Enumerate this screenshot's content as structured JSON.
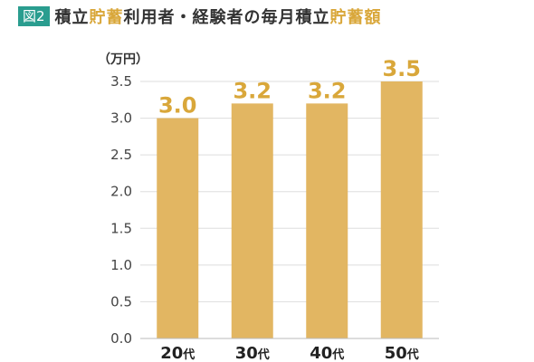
{
  "figure_label": "図2",
  "title_parts": [
    {
      "text": "積立",
      "highlight": false
    },
    {
      "text": "貯蓄",
      "highlight": true
    },
    {
      "text": "利用者・経験者の毎月積立",
      "highlight": false
    },
    {
      "text": "貯蓄額",
      "highlight": true
    }
  ],
  "colors": {
    "bar": "#e2b662",
    "value_label": "#d9a73a",
    "badge": "#2a9d8f",
    "grid": "#dddddd",
    "axis_text": "#444444"
  },
  "chart_data": {
    "type": "bar",
    "unit_label": "（万円）",
    "categories": [
      {
        "num": "20",
        "suffix": "代"
      },
      {
        "num": "30",
        "suffix": "代"
      },
      {
        "num": "40",
        "suffix": "代"
      },
      {
        "num": "50",
        "suffix": "代"
      }
    ],
    "values": [
      3.0,
      3.2,
      3.2,
      3.5
    ],
    "value_labels": [
      "3.0",
      "3.2",
      "3.2",
      "3.5"
    ],
    "ylim": [
      0,
      3.5
    ],
    "yticks": [
      "0.0",
      "0.5",
      "1.0",
      "1.5",
      "2.0",
      "2.5",
      "3.0",
      "3.5"
    ],
    "grid": true
  }
}
